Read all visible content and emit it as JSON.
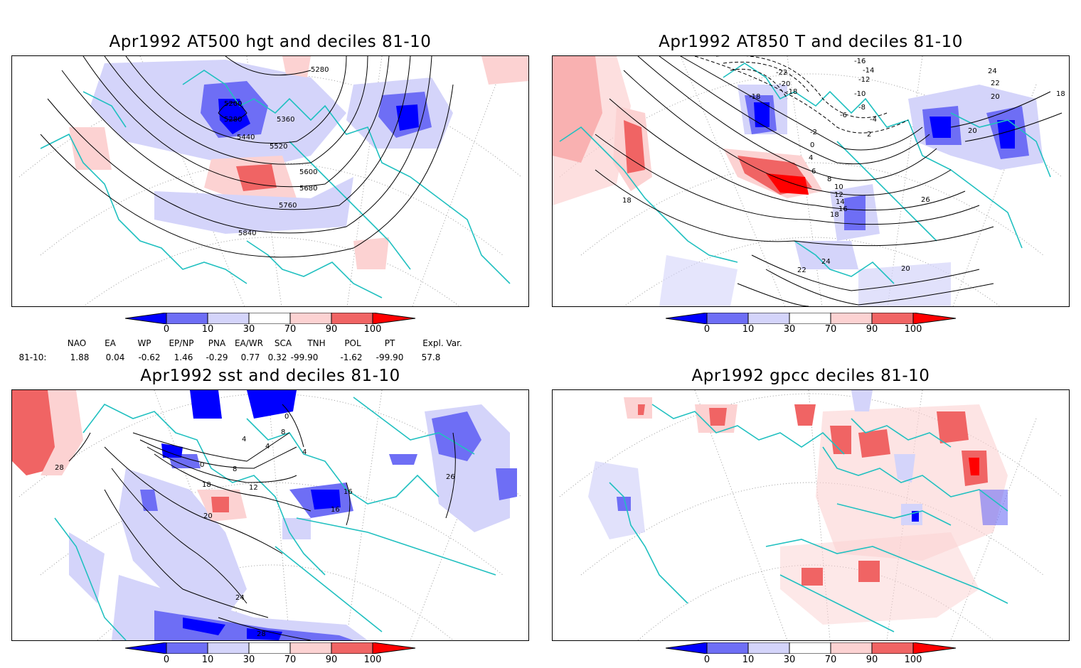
{
  "panels": [
    {
      "title": "Apr1992 AT500 hgt and deciles 81-10",
      "contour_labels": [
        "5200",
        "5280",
        "5280",
        "5360",
        "5440",
        "5520",
        "5600",
        "5680",
        "5760",
        "5840"
      ]
    },
    {
      "title": "Apr1992 AT850 T and deciles 81-10",
      "contour_labels": [
        "-18",
        "-22",
        "-20",
        "-18",
        "-16",
        "-14",
        "-12",
        "-10",
        "-8",
        "-6",
        "-4",
        "-2",
        "0",
        "2",
        "4",
        "6",
        "8",
        "10",
        "12",
        "14",
        "16",
        "18",
        "18",
        "18",
        "20",
        "20",
        "20",
        "22",
        "22",
        "24",
        "24",
        "26"
      ]
    },
    {
      "title": "Apr1992 sst and deciles 81-10",
      "contour_labels": [
        "0",
        "0",
        "4",
        "4",
        "4",
        "8",
        "8",
        "12",
        "16",
        "16",
        "18",
        "20",
        "24",
        "26",
        "28",
        "28"
      ]
    },
    {
      "title": "Apr1992 gpcc deciles 81-10",
      "contour_labels": []
    }
  ],
  "colorbar": {
    "ticks": [
      "0",
      "10",
      "30",
      "70",
      "90",
      "100"
    ],
    "colors": [
      "#0000ff",
      "#6e6ef5",
      "#d4d4fa",
      "#ffffff",
      "#fcd2d2",
      "#f06464",
      "#ff0000"
    ]
  },
  "indices": {
    "headers": [
      "NAO",
      "EA",
      "WP",
      "EP/NP",
      "PNA",
      "EA/WR",
      "SCA",
      "TNH",
      "POL",
      "PT",
      "Expl. Var."
    ],
    "row_label": "81-10:",
    "values": [
      "1.88",
      "0.04",
      "-0.62",
      "1.46",
      "-0.29",
      "0.77",
      "0.32",
      "-99.90",
      "-1.62",
      "-99.90",
      "57.8"
    ]
  },
  "colors": {
    "coast": "#20c0c0",
    "contour": "#000000",
    "grid": "#9a9a9a"
  }
}
